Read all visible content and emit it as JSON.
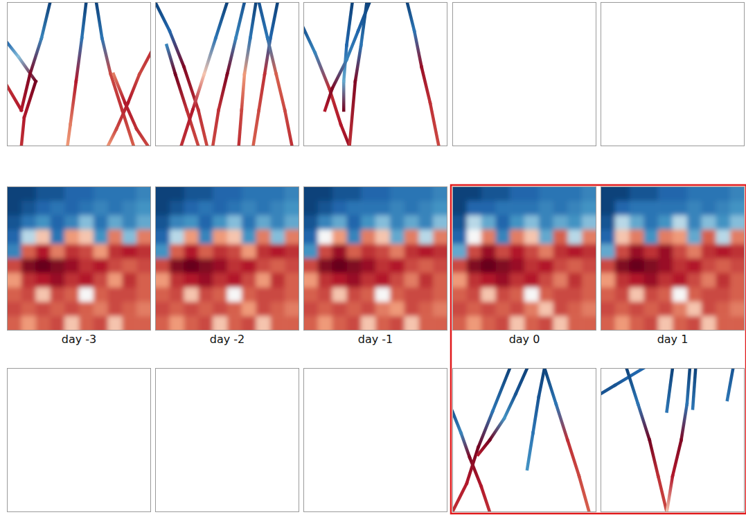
{
  "chart_data": {
    "type": "heatmap",
    "zlim": [
      -1,
      1
    ],
    "xlim": [
      0,
      1
    ],
    "ylim": [
      0,
      1
    ],
    "tick_labels": false,
    "columns": [
      "day -3",
      "day -2",
      "day -1",
      "day 0",
      "day 1"
    ],
    "fields": [
      [
        [
          -0.9,
          -0.9,
          -0.8,
          -0.8,
          -0.7,
          -0.7,
          -0.6,
          -0.6,
          -0.6,
          -0.5
        ],
        [
          -0.9,
          -0.8,
          -0.7,
          -0.6,
          -0.7,
          -0.6,
          -0.5,
          -0.6,
          -0.5,
          -0.4
        ],
        [
          -0.8,
          -0.6,
          -0.4,
          -0.7,
          -0.5,
          -0.2,
          -0.6,
          -0.3,
          -0.5,
          -0.3
        ],
        [
          -0.7,
          -0.1,
          0.1,
          -0.6,
          0.2,
          0.1,
          -0.4,
          0.3,
          -0.2,
          0.3
        ],
        [
          -0.5,
          0.4,
          0.7,
          0.3,
          0.6,
          0.5,
          0.2,
          0.6,
          0.7,
          0.6
        ],
        [
          0.5,
          0.9,
          1.0,
          0.9,
          0.8,
          0.6,
          0.7,
          0.5,
          0.4,
          0.5
        ],
        [
          0.2,
          0.6,
          0.7,
          0.8,
          0.6,
          0.7,
          0.5,
          0.2,
          0.6,
          0.4
        ],
        [
          0.4,
          0.5,
          0.1,
          0.5,
          0.4,
          0.0,
          0.4,
          0.5,
          0.5,
          0.4
        ],
        [
          0.5,
          0.4,
          0.5,
          0.4,
          0.5,
          0.4,
          0.3,
          0.5,
          0.4,
          0.3
        ],
        [
          0.4,
          0.2,
          0.4,
          0.5,
          0.1,
          0.4,
          0.5,
          0.1,
          0.4,
          0.4
        ]
      ],
      [
        [
          -0.9,
          -0.9,
          -0.8,
          -0.8,
          -0.7,
          -0.7,
          -0.6,
          -0.6,
          -0.6,
          -0.5
        ],
        [
          -0.9,
          -0.8,
          -0.7,
          -0.6,
          -0.7,
          -0.6,
          -0.5,
          -0.6,
          -0.5,
          -0.4
        ],
        [
          -0.8,
          -0.5,
          -0.4,
          -0.7,
          -0.4,
          -0.2,
          -0.6,
          -0.3,
          -0.5,
          -0.3
        ],
        [
          -0.7,
          -0.1,
          0.2,
          -0.5,
          0.2,
          0.1,
          -0.4,
          0.3,
          -0.2,
          0.3
        ],
        [
          -0.4,
          0.4,
          0.7,
          0.4,
          0.6,
          0.5,
          0.2,
          0.6,
          0.7,
          0.6
        ],
        [
          0.5,
          0.9,
          1.0,
          0.9,
          0.8,
          0.6,
          0.7,
          0.5,
          0.4,
          0.5
        ],
        [
          0.2,
          0.6,
          0.7,
          0.8,
          0.6,
          0.7,
          0.5,
          0.2,
          0.6,
          0.4
        ],
        [
          0.4,
          0.5,
          0.1,
          0.5,
          0.4,
          0.0,
          0.4,
          0.5,
          0.5,
          0.4
        ],
        [
          0.5,
          0.4,
          0.5,
          0.4,
          0.5,
          0.4,
          0.2,
          0.5,
          0.4,
          0.3
        ],
        [
          0.4,
          0.2,
          0.4,
          0.5,
          0.1,
          0.4,
          0.5,
          0.1,
          0.4,
          0.4
        ]
      ],
      [
        [
          -0.9,
          -0.9,
          -0.8,
          -0.8,
          -0.7,
          -0.7,
          -0.6,
          -0.6,
          -0.6,
          -0.5
        ],
        [
          -0.9,
          -0.8,
          -0.7,
          -0.6,
          -0.6,
          -0.6,
          -0.5,
          -0.6,
          -0.5,
          -0.4
        ],
        [
          -0.8,
          -0.5,
          -0.3,
          -0.7,
          -0.4,
          -0.2,
          -0.5,
          -0.3,
          -0.5,
          -0.2
        ],
        [
          -0.7,
          0.0,
          0.2,
          -0.5,
          0.3,
          0.1,
          -0.3,
          0.3,
          -0.1,
          0.3
        ],
        [
          -0.4,
          0.5,
          0.8,
          0.4,
          0.6,
          0.5,
          0.3,
          0.6,
          0.7,
          0.6
        ],
        [
          0.5,
          0.9,
          1.0,
          0.9,
          0.8,
          0.6,
          0.7,
          0.5,
          0.4,
          0.5
        ],
        [
          0.2,
          0.6,
          0.7,
          0.8,
          0.6,
          0.7,
          0.5,
          0.3,
          0.6,
          0.4
        ],
        [
          0.4,
          0.5,
          0.1,
          0.5,
          0.4,
          0.0,
          0.4,
          0.5,
          0.5,
          0.4
        ],
        [
          0.5,
          0.4,
          0.5,
          0.4,
          0.5,
          0.3,
          0.2,
          0.5,
          0.4,
          0.3
        ],
        [
          0.4,
          0.2,
          0.4,
          0.5,
          0.1,
          0.4,
          0.5,
          0.1,
          0.4,
          0.4
        ]
      ],
      [
        [
          -0.9,
          -0.9,
          -0.8,
          -0.8,
          -0.7,
          -0.7,
          -0.6,
          -0.6,
          -0.6,
          -0.5
        ],
        [
          -0.9,
          -0.7,
          -0.7,
          -0.6,
          -0.6,
          -0.6,
          -0.5,
          -0.6,
          -0.5,
          -0.4
        ],
        [
          -0.8,
          -0.1,
          -0.3,
          -0.7,
          -0.4,
          -0.2,
          -0.5,
          -0.3,
          -0.4,
          -0.2
        ],
        [
          -0.7,
          0.0,
          0.3,
          -0.5,
          0.3,
          0.1,
          -0.3,
          0.4,
          -0.1,
          0.3
        ],
        [
          -0.3,
          0.5,
          0.8,
          0.5,
          0.7,
          0.5,
          0.3,
          0.6,
          0.7,
          0.6
        ],
        [
          0.5,
          0.9,
          1.0,
          0.9,
          0.8,
          0.6,
          0.7,
          0.5,
          0.4,
          0.5
        ],
        [
          0.2,
          0.6,
          0.7,
          0.8,
          0.6,
          0.7,
          0.5,
          0.3,
          0.6,
          0.4
        ],
        [
          0.4,
          0.5,
          0.1,
          0.5,
          0.4,
          0.0,
          0.4,
          0.5,
          0.5,
          0.4
        ],
        [
          0.5,
          0.4,
          0.5,
          0.4,
          0.5,
          0.3,
          0.1,
          0.5,
          0.4,
          0.3
        ],
        [
          0.4,
          0.2,
          0.4,
          0.5,
          0.1,
          0.4,
          0.5,
          0.1,
          0.4,
          0.4
        ]
      ],
      [
        [
          -0.9,
          -0.9,
          -0.8,
          -0.8,
          -0.7,
          -0.7,
          -0.6,
          -0.6,
          -0.6,
          -0.5
        ],
        [
          -0.9,
          -0.7,
          -0.6,
          -0.6,
          -0.6,
          -0.6,
          -0.5,
          -0.6,
          -0.5,
          -0.4
        ],
        [
          -0.8,
          -0.1,
          -0.3,
          -0.6,
          -0.4,
          -0.1,
          -0.5,
          -0.2,
          -0.4,
          -0.2
        ],
        [
          -0.7,
          0.1,
          0.3,
          -0.4,
          0.3,
          0.2,
          -0.3,
          0.4,
          -0.1,
          0.3
        ],
        [
          -0.3,
          0.5,
          0.8,
          0.6,
          0.8,
          0.5,
          0.3,
          0.6,
          0.7,
          0.6
        ],
        [
          0.5,
          0.9,
          1.0,
          0.9,
          0.8,
          0.6,
          0.7,
          0.5,
          0.4,
          0.5
        ],
        [
          0.2,
          0.6,
          0.7,
          0.8,
          0.6,
          0.7,
          0.5,
          0.3,
          0.6,
          0.4
        ],
        [
          0.4,
          0.5,
          0.1,
          0.5,
          0.4,
          0.0,
          0.4,
          0.5,
          0.5,
          0.4
        ],
        [
          0.5,
          0.4,
          0.5,
          0.4,
          0.5,
          0.3,
          0.1,
          0.5,
          0.4,
          0.3
        ],
        [
          0.4,
          0.2,
          0.4,
          0.5,
          0.1,
          0.4,
          0.5,
          0.1,
          0.4,
          0.4
        ]
      ]
    ],
    "tracks_top": [
      [
        {
          "x": [
            0.0,
            0.08,
            0.2,
            0.12,
            0.1
          ],
          "y": [
            0.28,
            0.38,
            0.55,
            0.8,
            1.0
          ],
          "values": [
            -0.7,
            -0.2,
            0.95,
            0.7,
            0.6
          ]
        },
        {
          "x": [
            0.3,
            0.24,
            0.16,
            0.1,
            0.0
          ],
          "y": [
            0.0,
            0.25,
            0.5,
            0.75,
            0.58
          ],
          "values": [
            -0.9,
            -0.5,
            0.9,
            0.7,
            0.6
          ]
        },
        {
          "x": [
            0.55,
            0.52,
            0.48,
            0.44,
            0.42
          ],
          "y": [
            0.0,
            0.25,
            0.55,
            0.85,
            1.0
          ],
          "values": [
            -0.9,
            -0.6,
            0.7,
            0.3,
            0.2
          ]
        },
        {
          "x": [
            0.62,
            0.66,
            0.72,
            0.8,
            0.88
          ],
          "y": [
            0.0,
            0.25,
            0.5,
            0.75,
            1.0
          ],
          "values": [
            -0.9,
            -0.6,
            0.5,
            0.6,
            0.4
          ]
        },
        {
          "x": [
            1.0,
            0.92,
            0.84,
            0.76,
            0.7
          ],
          "y": [
            0.35,
            0.5,
            0.7,
            0.88,
            1.0
          ],
          "values": [
            0.6,
            0.5,
            0.7,
            0.5,
            0.2
          ]
        },
        {
          "x": [
            0.74,
            0.82,
            0.9,
            0.98
          ],
          "y": [
            0.5,
            0.7,
            0.88,
            1.0
          ],
          "values": [
            0.3,
            0.7,
            0.6,
            0.5
          ]
        }
      ],
      [
        {
          "x": [
            0.0,
            0.1,
            0.2,
            0.3,
            0.36
          ],
          "y": [
            0.0,
            0.2,
            0.45,
            0.75,
            1.0
          ],
          "values": [
            -0.9,
            -0.7,
            0.9,
            0.6,
            0.5
          ]
        },
        {
          "x": [
            0.08,
            0.14,
            0.22,
            0.3
          ],
          "y": [
            0.3,
            0.5,
            0.75,
            1.0
          ],
          "values": [
            -0.5,
            0.95,
            0.6,
            0.5
          ]
        },
        {
          "x": [
            0.5,
            0.42,
            0.34,
            0.26,
            0.18
          ],
          "y": [
            0.0,
            0.25,
            0.5,
            0.75,
            1.0
          ],
          "values": [
            -0.9,
            -0.6,
            0.1,
            0.7,
            0.6
          ]
        },
        {
          "x": [
            0.62,
            0.56,
            0.5,
            0.44,
            0.4
          ],
          "y": [
            0.0,
            0.25,
            0.5,
            0.75,
            1.0
          ],
          "values": [
            -0.8,
            -0.5,
            0.9,
            0.6,
            0.5
          ]
        },
        {
          "x": [
            0.7,
            0.66,
            0.62,
            0.6,
            0.58
          ],
          "y": [
            0.0,
            0.25,
            0.5,
            0.75,
            1.0
          ],
          "values": [
            -0.9,
            -0.6,
            0.2,
            0.5,
            0.6
          ]
        },
        {
          "x": [
            0.85,
            0.8,
            0.76,
            0.72,
            0.68
          ],
          "y": [
            0.0,
            0.25,
            0.5,
            0.75,
            1.0
          ],
          "values": [
            -0.9,
            -0.7,
            0.6,
            0.5,
            0.4
          ]
        },
        {
          "x": [
            0.72,
            0.78,
            0.84,
            0.9,
            0.95
          ],
          "y": [
            0.0,
            0.25,
            0.5,
            0.75,
            1.0
          ],
          "values": [
            -0.8,
            -0.6,
            0.4,
            0.5,
            0.6
          ]
        }
      ],
      [
        {
          "x": [
            0.0,
            0.08,
            0.18,
            0.26,
            0.32
          ],
          "y": [
            0.18,
            0.35,
            0.6,
            0.85,
            1.0
          ],
          "values": [
            -0.8,
            -0.5,
            0.6,
            0.7,
            0.8
          ]
        },
        {
          "x": [
            0.34,
            0.3,
            0.28,
            0.28
          ],
          "y": [
            0.0,
            0.3,
            0.55,
            0.75
          ],
          "values": [
            -0.9,
            -0.7,
            -0.3,
            0.95
          ]
        },
        {
          "x": [
            0.44,
            0.4,
            0.36,
            0.32
          ],
          "y": [
            0.0,
            0.3,
            0.55,
            1.0
          ],
          "values": [
            -0.9,
            -0.6,
            0.9,
            0.6
          ]
        },
        {
          "x": [
            0.46,
            0.38,
            0.3,
            0.2,
            0.15
          ],
          "y": [
            0.0,
            0.2,
            0.4,
            0.6,
            0.75
          ],
          "values": [
            -0.9,
            -0.7,
            -0.5,
            0.9,
            0.7
          ]
        },
        {
          "x": [
            0.72,
            0.77,
            0.82,
            0.88,
            0.94
          ],
          "y": [
            0.0,
            0.2,
            0.45,
            0.7,
            1.0
          ],
          "values": [
            -0.9,
            -0.6,
            0.8,
            0.6,
            0.5
          ]
        }
      ],
      [],
      []
    ],
    "tracks_bottom": [
      [],
      [],
      [],
      [
        {
          "x": [
            0.0,
            0.06,
            0.12,
            0.2,
            0.26
          ],
          "y": [
            0.3,
            0.45,
            0.62,
            0.82,
            1.0
          ],
          "values": [
            -0.8,
            -0.5,
            0.9,
            0.7,
            0.6
          ]
        },
        {
          "x": [
            0.4,
            0.28,
            0.18,
            0.1,
            0.0
          ],
          "y": [
            0.0,
            0.3,
            0.55,
            0.8,
            1.0
          ],
          "values": [
            -0.9,
            -0.6,
            0.95,
            0.7,
            0.6
          ]
        },
        {
          "x": [
            0.52,
            0.44,
            0.36,
            0.26,
            0.18
          ],
          "y": [
            0.0,
            0.18,
            0.35,
            0.5,
            0.6
          ],
          "values": [
            -0.9,
            -0.8,
            -0.4,
            0.95,
            0.7
          ]
        },
        {
          "x": [
            0.64,
            0.6,
            0.56,
            0.52
          ],
          "y": [
            0.0,
            0.2,
            0.45,
            0.7
          ],
          "values": [
            -0.9,
            -0.8,
            -0.6,
            -0.4
          ]
        },
        {
          "x": [
            0.64,
            0.72,
            0.8,
            0.88,
            0.95
          ],
          "y": [
            0.0,
            0.25,
            0.5,
            0.75,
            1.0
          ],
          "values": [
            -0.9,
            -0.6,
            0.6,
            0.5,
            0.4
          ]
        }
      ],
      [
        {
          "x": [
            0.0,
            0.1,
            0.2,
            0.3
          ],
          "y": [
            0.18,
            0.12,
            0.06,
            0.0
          ],
          "values": [
            -0.8,
            -0.8,
            -0.7,
            -0.7
          ]
        },
        {
          "x": [
            0.18,
            0.26,
            0.34,
            0.4,
            0.46
          ],
          "y": [
            0.0,
            0.25,
            0.5,
            0.75,
            1.0
          ],
          "values": [
            -0.9,
            -0.6,
            0.95,
            0.6,
            0.5
          ]
        },
        {
          "x": [
            0.5,
            0.46
          ],
          "y": [
            0.0,
            0.3
          ],
          "values": [
            -0.9,
            -0.6
          ]
        },
        {
          "x": [
            0.62,
            0.6,
            0.56,
            0.5,
            0.46
          ],
          "y": [
            0.0,
            0.25,
            0.5,
            0.75,
            1.0
          ],
          "values": [
            -0.9,
            -0.6,
            0.9,
            0.7,
            0.1
          ]
        },
        {
          "x": [
            0.66,
            0.64
          ],
          "y": [
            0.0,
            0.28
          ],
          "values": [
            -0.9,
            -0.6
          ]
        },
        {
          "x": [
            0.92,
            0.88
          ],
          "y": [
            0.0,
            0.22
          ],
          "values": [
            -0.8,
            -0.6
          ]
        }
      ]
    ]
  }
}
